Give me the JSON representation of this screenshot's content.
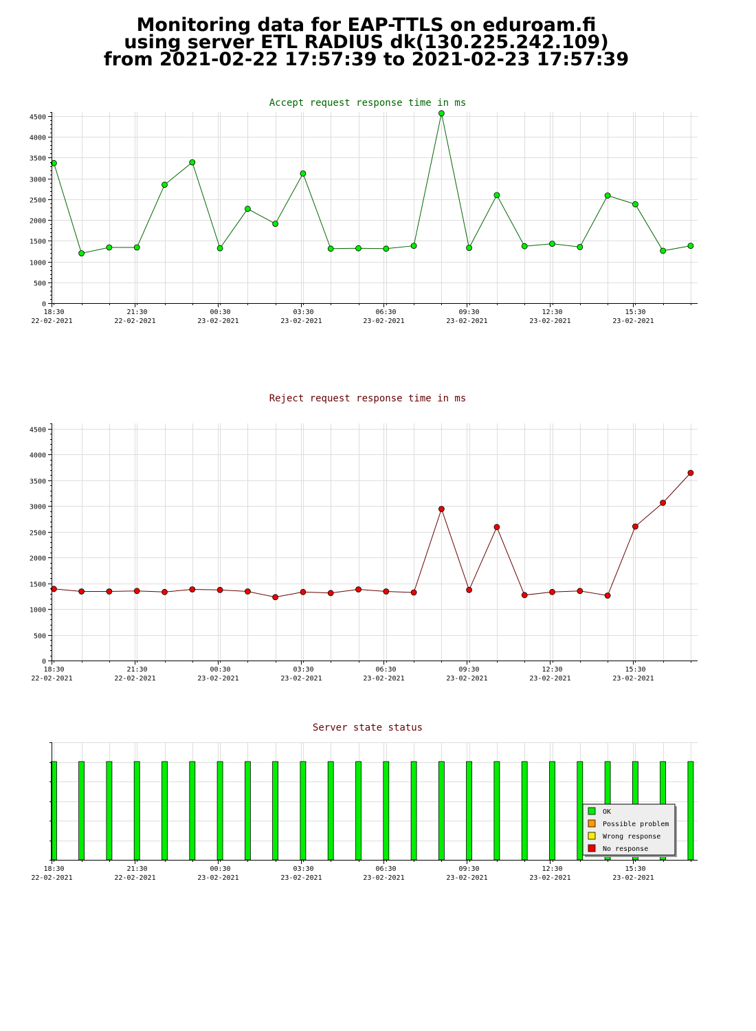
{
  "page": {
    "title_line1": "Monitoring data for EAP-TTLS on eduroam.fi",
    "title_line2": "using server ETL RADIUS dk(130.225.242.109)",
    "title_line3": "from 2021-02-22 17:57:39 to 2021-02-23 17:57:39"
  },
  "colors": {
    "accept_title": "#006600",
    "reject_title": "#660000",
    "status_title": "#660000",
    "accept_marker": "#00ee00",
    "reject_marker": "#ee0000",
    "accept_line": "#006600",
    "reject_line": "#660000",
    "bar_ok": "#00ee00",
    "grid": "#dddddd",
    "axis": "#000000"
  },
  "chart_data": [
    {
      "type": "line",
      "title": "Accept request response time in ms",
      "x_ticks": [
        {
          "time": "18:30",
          "date": "22-02-2021"
        },
        {
          "time": "21:30",
          "date": "22-02-2021"
        },
        {
          "time": "00:30",
          "date": "23-02-2021"
        },
        {
          "time": "03:30",
          "date": "23-02-2021"
        },
        {
          "time": "06:30",
          "date": "23-02-2021"
        },
        {
          "time": "09:30",
          "date": "23-02-2021"
        },
        {
          "time": "12:30",
          "date": "23-02-2021"
        },
        {
          "time": "15:30",
          "date": "23-02-2021"
        }
      ],
      "x_range": [
        "2021-02-22 18:30",
        "2021-02-23 17:50"
      ],
      "ylim": [
        0,
        4600
      ],
      "y_ticks": [
        0,
        500,
        1000,
        1500,
        2000,
        2500,
        3000,
        3500,
        4000,
        4500
      ],
      "grid": true,
      "x": [
        "2021-02-22 18:35",
        "2021-02-22 19:35",
        "2021-02-22 20:35",
        "2021-02-22 21:35",
        "2021-02-22 22:35",
        "2021-02-22 23:35",
        "2021-02-23 00:35",
        "2021-02-23 01:35",
        "2021-02-23 02:35",
        "2021-02-23 03:35",
        "2021-02-23 04:35",
        "2021-02-23 05:35",
        "2021-02-23 06:35",
        "2021-02-23 07:35",
        "2021-02-23 08:35",
        "2021-02-23 09:35",
        "2021-02-23 10:35",
        "2021-02-23 11:35",
        "2021-02-23 12:35",
        "2021-02-23 13:35",
        "2021-02-23 14:35",
        "2021-02-23 15:35",
        "2021-02-23 16:35",
        "2021-02-23 17:35"
      ],
      "values": [
        3370,
        1200,
        1340,
        1340,
        2850,
        3390,
        1320,
        2270,
        1910,
        3120,
        1310,
        1320,
        1310,
        1380,
        4570,
        1330,
        2600,
        1370,
        1430,
        1350,
        2590,
        2380,
        1260,
        1380
      ]
    },
    {
      "type": "line",
      "title": "Reject request response time in ms",
      "x_ticks": [
        {
          "time": "18:30",
          "date": "22-02-2021"
        },
        {
          "time": "21:30",
          "date": "22-02-2021"
        },
        {
          "time": "00:30",
          "date": "23-02-2021"
        },
        {
          "time": "03:30",
          "date": "23-02-2021"
        },
        {
          "time": "06:30",
          "date": "23-02-2021"
        },
        {
          "time": "09:30",
          "date": "23-02-2021"
        },
        {
          "time": "12:30",
          "date": "23-02-2021"
        },
        {
          "time": "15:30",
          "date": "23-02-2021"
        }
      ],
      "x_range": [
        "2021-02-22 18:30",
        "2021-02-23 17:50"
      ],
      "ylim": [
        0,
        4600
      ],
      "y_ticks": [
        0,
        500,
        1000,
        1500,
        2000,
        2500,
        3000,
        3500,
        4000,
        4500
      ],
      "grid": true,
      "x": [
        "2021-02-22 18:35",
        "2021-02-22 19:35",
        "2021-02-22 20:35",
        "2021-02-22 21:35",
        "2021-02-22 22:35",
        "2021-02-22 23:35",
        "2021-02-23 00:35",
        "2021-02-23 01:35",
        "2021-02-23 02:35",
        "2021-02-23 03:35",
        "2021-02-23 04:35",
        "2021-02-23 05:35",
        "2021-02-23 06:35",
        "2021-02-23 07:35",
        "2021-02-23 08:35",
        "2021-02-23 09:35",
        "2021-02-23 10:35",
        "2021-02-23 11:35",
        "2021-02-23 12:35",
        "2021-02-23 13:35",
        "2021-02-23 14:35",
        "2021-02-23 15:35",
        "2021-02-23 16:35",
        "2021-02-23 17:35"
      ],
      "values": [
        1390,
        1340,
        1340,
        1350,
        1330,
        1380,
        1370,
        1340,
        1230,
        1330,
        1310,
        1380,
        1340,
        1320,
        2940,
        1370,
        2590,
        1270,
        1330,
        1350,
        1260,
        2600,
        3060,
        3640
      ]
    },
    {
      "type": "bar",
      "title": "Server state status",
      "x_ticks": [
        {
          "time": "18:30",
          "date": "22-02-2021"
        },
        {
          "time": "21:30",
          "date": "22-02-2021"
        },
        {
          "time": "00:30",
          "date": "23-02-2021"
        },
        {
          "time": "03:30",
          "date": "23-02-2021"
        },
        {
          "time": "06:30",
          "date": "23-02-2021"
        },
        {
          "time": "09:30",
          "date": "23-02-2021"
        },
        {
          "time": "12:30",
          "date": "23-02-2021"
        },
        {
          "time": "15:30",
          "date": "23-02-2021"
        }
      ],
      "x_range": [
        "2021-02-22 18:30",
        "2021-02-23 17:50"
      ],
      "grid": true,
      "legend_position": "bottom-right",
      "legend": [
        {
          "label": "OK",
          "color": "#00ee00"
        },
        {
          "label": "Possible problem",
          "color": "#ff9900"
        },
        {
          "label": "Wrong response",
          "color": "#ffee00"
        },
        {
          "label": "No response",
          "color": "#ee0000"
        }
      ],
      "x": [
        "2021-02-22 18:35",
        "2021-02-22 19:35",
        "2021-02-22 20:35",
        "2021-02-22 21:35",
        "2021-02-22 22:35",
        "2021-02-22 23:35",
        "2021-02-23 00:35",
        "2021-02-23 01:35",
        "2021-02-23 02:35",
        "2021-02-23 03:35",
        "2021-02-23 04:35",
        "2021-02-23 05:35",
        "2021-02-23 06:35",
        "2021-02-23 07:35",
        "2021-02-23 08:35",
        "2021-02-23 09:35",
        "2021-02-23 10:35",
        "2021-02-23 11:35",
        "2021-02-23 12:35",
        "2021-02-23 13:35",
        "2021-02-23 14:35",
        "2021-02-23 15:35",
        "2021-02-23 16:35",
        "2021-02-23 17:35"
      ],
      "states": [
        "OK",
        "OK",
        "OK",
        "OK",
        "OK",
        "OK",
        "OK",
        "OK",
        "OK",
        "OK",
        "OK",
        "OK",
        "OK",
        "OK",
        "OK",
        "OK",
        "OK",
        "OK",
        "OK",
        "OK",
        "OK",
        "OK",
        "OK",
        "OK"
      ]
    }
  ]
}
